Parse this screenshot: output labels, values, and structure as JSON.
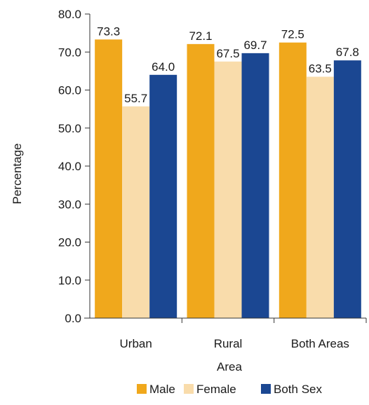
{
  "chart_data": {
    "type": "bar",
    "title": "",
    "xlabel": "Area",
    "ylabel": "Percentage",
    "categories": [
      "Urban",
      "Rural",
      "Both Areas"
    ],
    "series": [
      {
        "name": "Male",
        "values": [
          73.3,
          72.1,
          72.5
        ],
        "color": "#F0A81C"
      },
      {
        "name": "Female",
        "values": [
          55.7,
          67.5,
          63.5
        ],
        "color": "#F9DCAB"
      },
      {
        "name": "Both Sex",
        "values": [
          64.0,
          69.7,
          67.8
        ],
        "color": "#1B4792"
      }
    ],
    "ylim": [
      0,
      80
    ],
    "yticks": [
      "0.0",
      "10.0",
      "20.0",
      "30.0",
      "40.0",
      "50.0",
      "60.0",
      "70.0",
      "80.0"
    ],
    "data_labels": [
      [
        "73.3",
        "55.7",
        "64.0"
      ],
      [
        "72.1",
        "67.5",
        "69.7"
      ],
      [
        "72.5",
        "63.5",
        "67.8"
      ]
    ],
    "grid": false,
    "legend_position": "bottom"
  }
}
